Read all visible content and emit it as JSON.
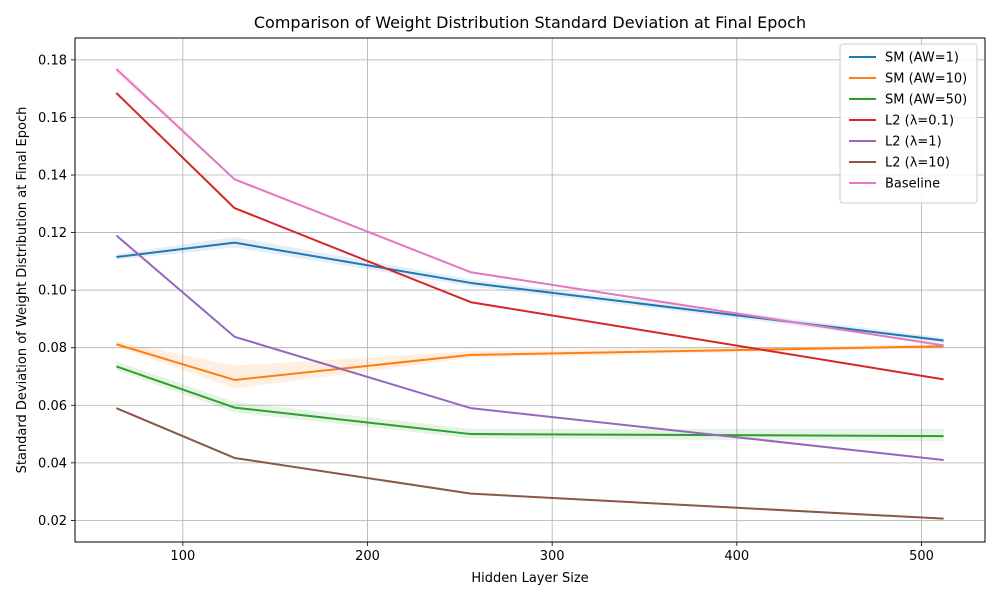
{
  "chart_data": {
    "type": "line",
    "title": "Comparison of Weight Distribution Standard Deviation at Final Epoch",
    "xlabel": "Hidden Layer Size",
    "ylabel": "Standard Deviation of Weight Distribution at Final Epoch",
    "x": [
      64,
      128,
      256,
      512
    ],
    "xlim": [
      41.6,
      534.4
    ],
    "ylim": [
      0.0125,
      0.1876
    ],
    "xticks": [
      100,
      200,
      300,
      400,
      500
    ],
    "yticks": [
      0.02,
      0.04,
      0.06,
      0.08,
      0.1,
      0.12,
      0.14,
      0.16,
      0.18
    ],
    "ytick_labels": [
      "0.02",
      "0.04",
      "0.06",
      "0.08",
      "0.10",
      "0.12",
      "0.14",
      "0.16",
      "0.18"
    ],
    "grid": true,
    "legend_position": "top-right",
    "series": [
      {
        "name": "SM (AW=1)",
        "color": "#1f77b4",
        "values": [
          0.1115,
          0.1165,
          0.1025,
          0.0825
        ],
        "lower": [
          0.1105,
          0.1148,
          0.1013,
          0.0815
        ],
        "upper": [
          0.1125,
          0.1185,
          0.1037,
          0.0835
        ]
      },
      {
        "name": "SM (AW=10)",
        "color": "#ff7f0e",
        "values": [
          0.0812,
          0.0688,
          0.0775,
          0.0805
        ],
        "lower": [
          0.0805,
          0.0658,
          0.0765,
          0.0798
        ],
        "upper": [
          0.0822,
          0.0738,
          0.0788,
          0.0812
        ]
      },
      {
        "name": "SM (AW=50)",
        "color": "#2ca02c",
        "values": [
          0.0735,
          0.0592,
          0.05,
          0.0493
        ],
        "lower": [
          0.0722,
          0.0575,
          0.0485,
          0.0475
        ],
        "upper": [
          0.0752,
          0.0612,
          0.0518,
          0.0518
        ]
      },
      {
        "name": "L2 (λ=0.1)",
        "color": "#d62728",
        "values": [
          0.1685,
          0.1285,
          0.0958,
          0.069
        ],
        "lower": [
          0.1682,
          0.1282,
          0.0955,
          0.0688
        ],
        "upper": [
          0.1688,
          0.1288,
          0.0961,
          0.0692
        ]
      },
      {
        "name": "L2 (λ=1)",
        "color": "#9467bd",
        "values": [
          0.119,
          0.0838,
          0.059,
          0.041
        ],
        "lower": [
          0.1187,
          0.0836,
          0.0588,
          0.0409
        ],
        "upper": [
          0.1193,
          0.084,
          0.0592,
          0.0411
        ]
      },
      {
        "name": "L2 (λ=10)",
        "color": "#8c564b",
        "values": [
          0.059,
          0.0417,
          0.0293,
          0.0206
        ],
        "lower": [
          0.0589,
          0.0416,
          0.0292,
          0.0205
        ],
        "upper": [
          0.0591,
          0.0418,
          0.0294,
          0.0207
        ]
      },
      {
        "name": "Baseline",
        "color": "#e377c2",
        "values": [
          0.1768,
          0.1385,
          0.1062,
          0.0808
        ],
        "lower": [
          0.1755,
          0.138,
          0.1058,
          0.0805
        ],
        "upper": [
          0.1782,
          0.139,
          0.1066,
          0.0811
        ]
      }
    ]
  }
}
